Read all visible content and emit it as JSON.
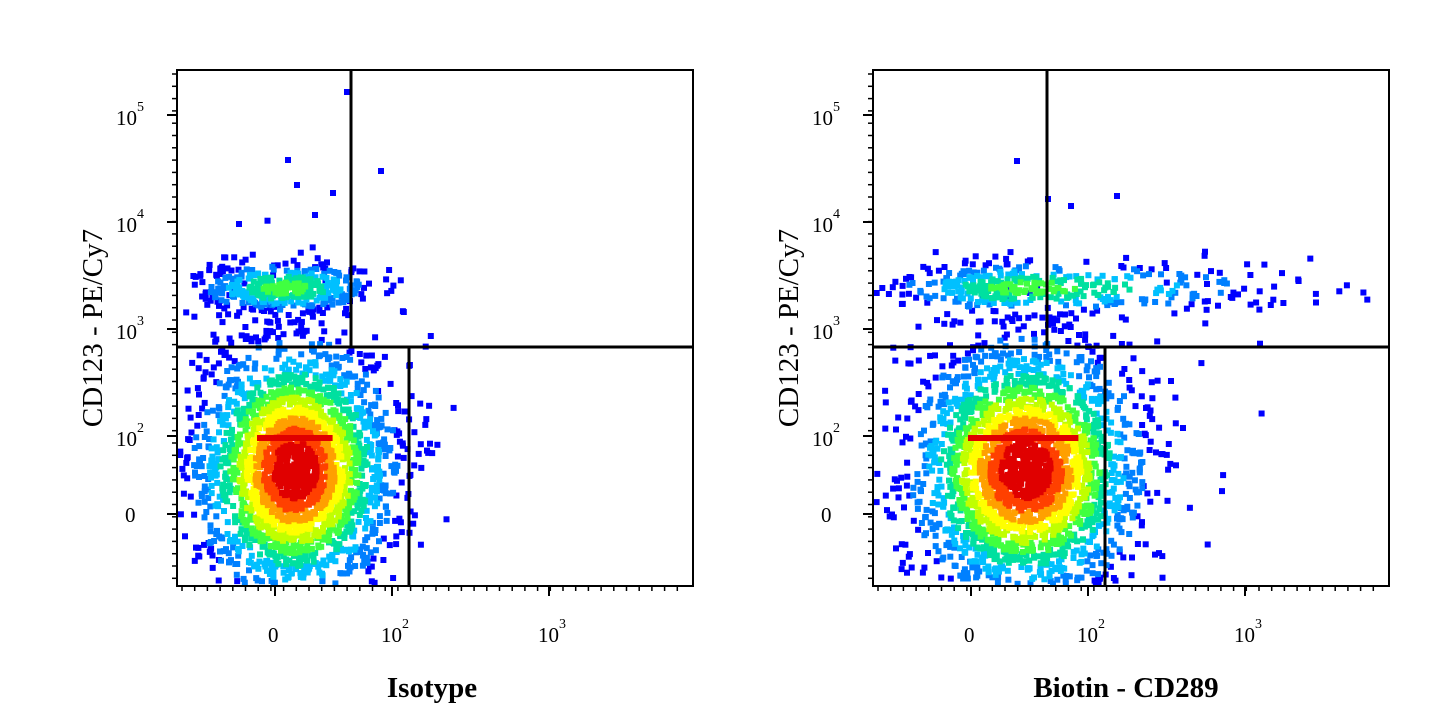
{
  "chart_data": [
    {
      "type": "scatter",
      "subtype": "flow-cytometry-density-dot-plot",
      "title": "",
      "xlabel": "Isotype",
      "ylabel": "CD123 - PE/Cy7",
      "x_scale": "biexponential",
      "y_scale": "biexponential",
      "x_ticks": [
        {
          "value": "0",
          "base": "0",
          "exp": ""
        },
        {
          "value": "100",
          "base": "10",
          "exp": "2"
        },
        {
          "value": "1000",
          "base": "10",
          "exp": "3"
        }
      ],
      "y_ticks": [
        {
          "value": "0",
          "base": "0",
          "exp": ""
        },
        {
          "value": "100",
          "base": "10",
          "exp": "2"
        },
        {
          "value": "1000",
          "base": "10",
          "exp": "3"
        },
        {
          "value": "10000",
          "base": "10",
          "exp": "4"
        },
        {
          "value": "100000",
          "base": "10",
          "exp": "5"
        }
      ],
      "quadrant_gates": {
        "x_upper": 60,
        "x_lower": 140,
        "y": 700
      },
      "color_scale": [
        "#0000ff",
        "#0080ff",
        "#00c0ff",
        "#00e0a0",
        "#40ff40",
        "#c0ff00",
        "#ffff00",
        "#ffa000",
        "#ff4000",
        "#e00000"
      ],
      "populations": [
        {
          "name": "main",
          "x_center": 5,
          "y_center": 60,
          "density": "high"
        },
        {
          "name": "upper",
          "x_center": 10,
          "y_center": 2500,
          "density": "medium"
        }
      ]
    },
    {
      "type": "scatter",
      "subtype": "flow-cytometry-density-dot-plot",
      "title": "",
      "xlabel": "Biotin - CD289",
      "ylabel": "CD123 - PE/Cy7",
      "x_scale": "biexponential",
      "y_scale": "biexponential",
      "x_ticks": [
        {
          "value": "0",
          "base": "0",
          "exp": ""
        },
        {
          "value": "100",
          "base": "10",
          "exp": "2"
        },
        {
          "value": "1000",
          "base": "10",
          "exp": "3"
        }
      ],
      "y_ticks": [
        {
          "value": "0",
          "base": "0",
          "exp": ""
        },
        {
          "value": "100",
          "base": "10",
          "exp": "2"
        },
        {
          "value": "1000",
          "base": "10",
          "exp": "3"
        },
        {
          "value": "10000",
          "base": "10",
          "exp": "4"
        },
        {
          "value": "100000",
          "base": "10",
          "exp": "5"
        }
      ],
      "quadrant_gates": {
        "x_upper": 60,
        "x_lower": 130,
        "y": 700
      },
      "color_scale": [
        "#0000ff",
        "#0080ff",
        "#00c0ff",
        "#00e0a0",
        "#40ff40",
        "#c0ff00",
        "#ffff00",
        "#ffa000",
        "#ff4000",
        "#e00000"
      ],
      "populations": [
        {
          "name": "main",
          "x_center": 40,
          "y_center": 60,
          "density": "high"
        },
        {
          "name": "upper",
          "x_center": 80,
          "y_center": 2500,
          "density": "medium"
        }
      ]
    }
  ]
}
